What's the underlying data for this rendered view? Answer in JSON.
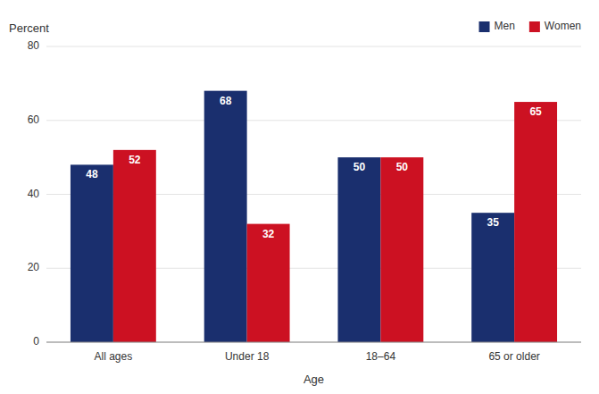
{
  "chart_data": {
    "type": "bar",
    "categories": [
      "All ages",
      "Under 18",
      "18–64",
      "65 or older"
    ],
    "series": [
      {
        "name": "Men",
        "color": "#1a2f6e",
        "values": [
          48,
          68,
          50,
          35
        ]
      },
      {
        "name": "Women",
        "color": "#cc1122",
        "values": [
          52,
          32,
          50,
          65
        ]
      }
    ],
    "x_label": "Age",
    "y_label": "Percent",
    "ylim": [
      0,
      80
    ],
    "yticks": [
      0,
      20,
      40,
      60,
      80
    ],
    "grid": true,
    "legend": "upper right",
    "data_labels": true
  }
}
